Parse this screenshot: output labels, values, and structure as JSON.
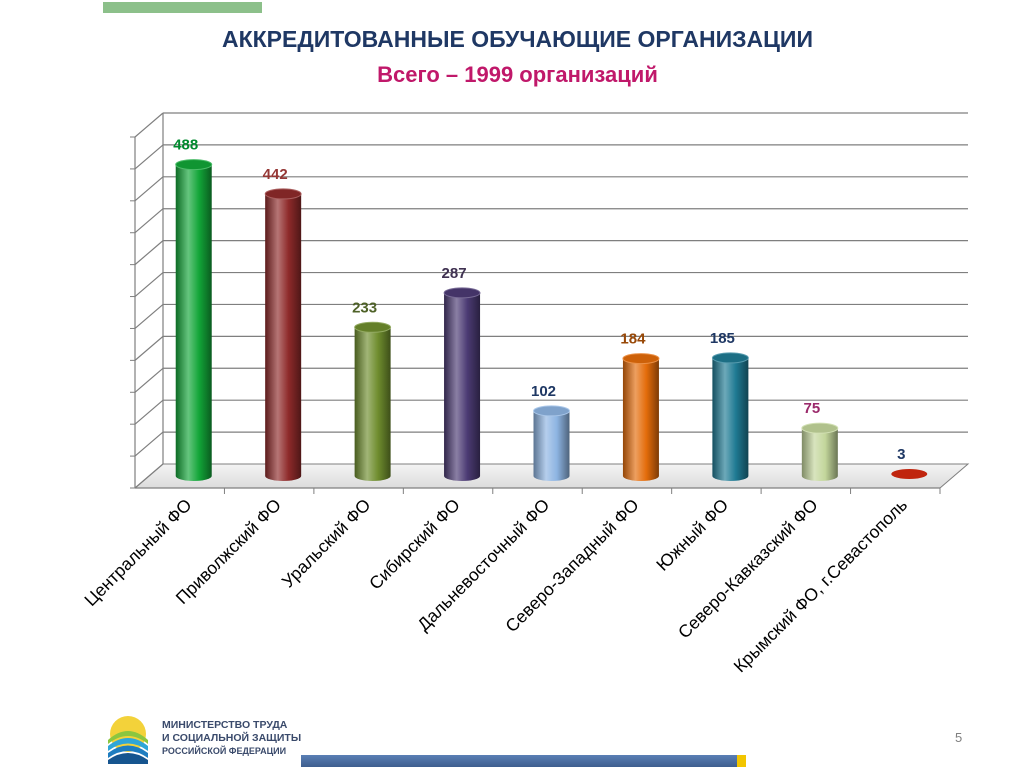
{
  "header": {
    "title": "АККРЕДИТОВАННЫЕ  ОБУЧАЮЩИЕ ОРГАНИЗАЦИИ",
    "subtitle": "Всего – 1999 организаций"
  },
  "chart_data": {
    "type": "bar",
    "style": "3d-cylinder",
    "categories": [
      "Центральный ФО",
      "Приволжский ФО",
      "Уральский ФО",
      "Сибирский ФО",
      "Дальневосточный ФО",
      "Северо-Западный ФО",
      "Южный ФО",
      "Северо-Кавказский ФО",
      "Крымский ФО, г.Севастополь"
    ],
    "values": [
      488,
      442,
      233,
      287,
      102,
      184,
      185,
      75,
      3
    ],
    "bar_colors": [
      "#12a538",
      "#8e2a2a",
      "#6f8d2e",
      "#4b3a73",
      "#8db4e2",
      "#e46c0a",
      "#1f7a93",
      "#c3d69b",
      "#c0250e"
    ],
    "label_colors": [
      "#008a2e",
      "#953735",
      "#4f6228",
      "#3f3151",
      "#1f3864",
      "#984807",
      "#1f3864",
      "#9b2a6b",
      "#1f3864"
    ],
    "ylim": [
      0,
      550
    ],
    "grid": true,
    "legend": "none"
  },
  "footer": {
    "ministry_line1": "МИНИСТЕРСТВО ТРУДА",
    "ministry_line2": "И СОЦИАЛЬНОЙ ЗАЩИТЫ",
    "ministry_line3": "РОССИЙСКОЙ ФЕДЕРАЦИИ",
    "page_number": "5"
  }
}
